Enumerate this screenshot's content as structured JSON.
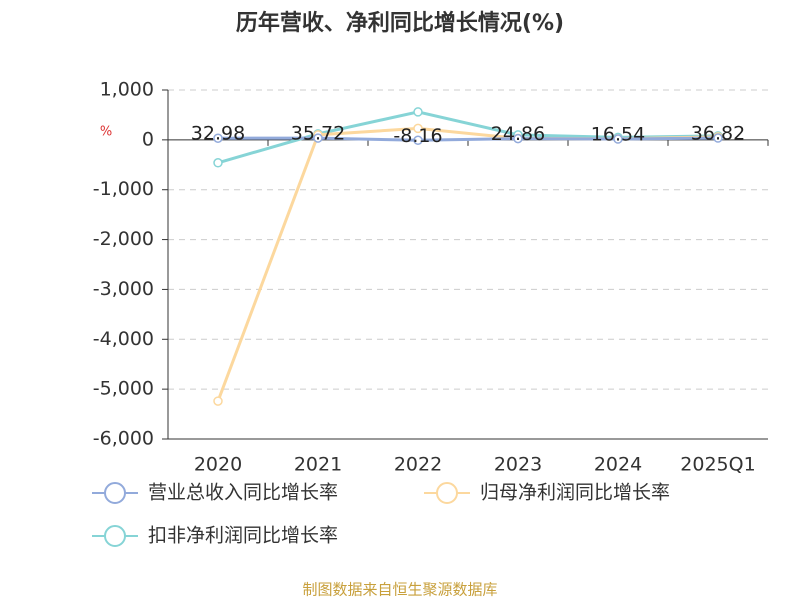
{
  "chart_data": {
    "type": "line",
    "title": "历年营收、净利同比增长情况(%)",
    "y_label": "%",
    "categories": [
      "2020",
      "2021",
      "2022",
      "2023",
      "2024",
      "2025Q1"
    ],
    "series": [
      {
        "name": "营业总收入同比增长率",
        "color": "#92aadb",
        "values": [
          32.98,
          35.72,
          -8.16,
          24.86,
          16.54,
          36.82
        ]
      },
      {
        "name": "归母净利润同比增长率",
        "color": "#fcd89e",
        "values": [
          -5240,
          100,
          230,
          30,
          20,
          60
        ]
      },
      {
        "name": "扣非净利润同比增长率",
        "color": "#86d4d6",
        "values": [
          -460,
          120,
          560,
          100,
          50,
          80
        ]
      }
    ],
    "ylim": [
      -6000,
      1000
    ],
    "yticks": [
      {
        "value": -6000,
        "label": "-6,000"
      },
      {
        "value": -5000,
        "label": "-5,000"
      },
      {
        "value": -4000,
        "label": "-4,000"
      },
      {
        "value": -3000,
        "label": "-3,000"
      },
      {
        "value": -2000,
        "label": "-2,000"
      },
      {
        "value": -1000,
        "label": "-1,000"
      },
      0,
      {
        "value": 1000,
        "label": "1,000"
      }
    ],
    "grid": true,
    "source": "制图数据来自恒生聚源数据库"
  }
}
